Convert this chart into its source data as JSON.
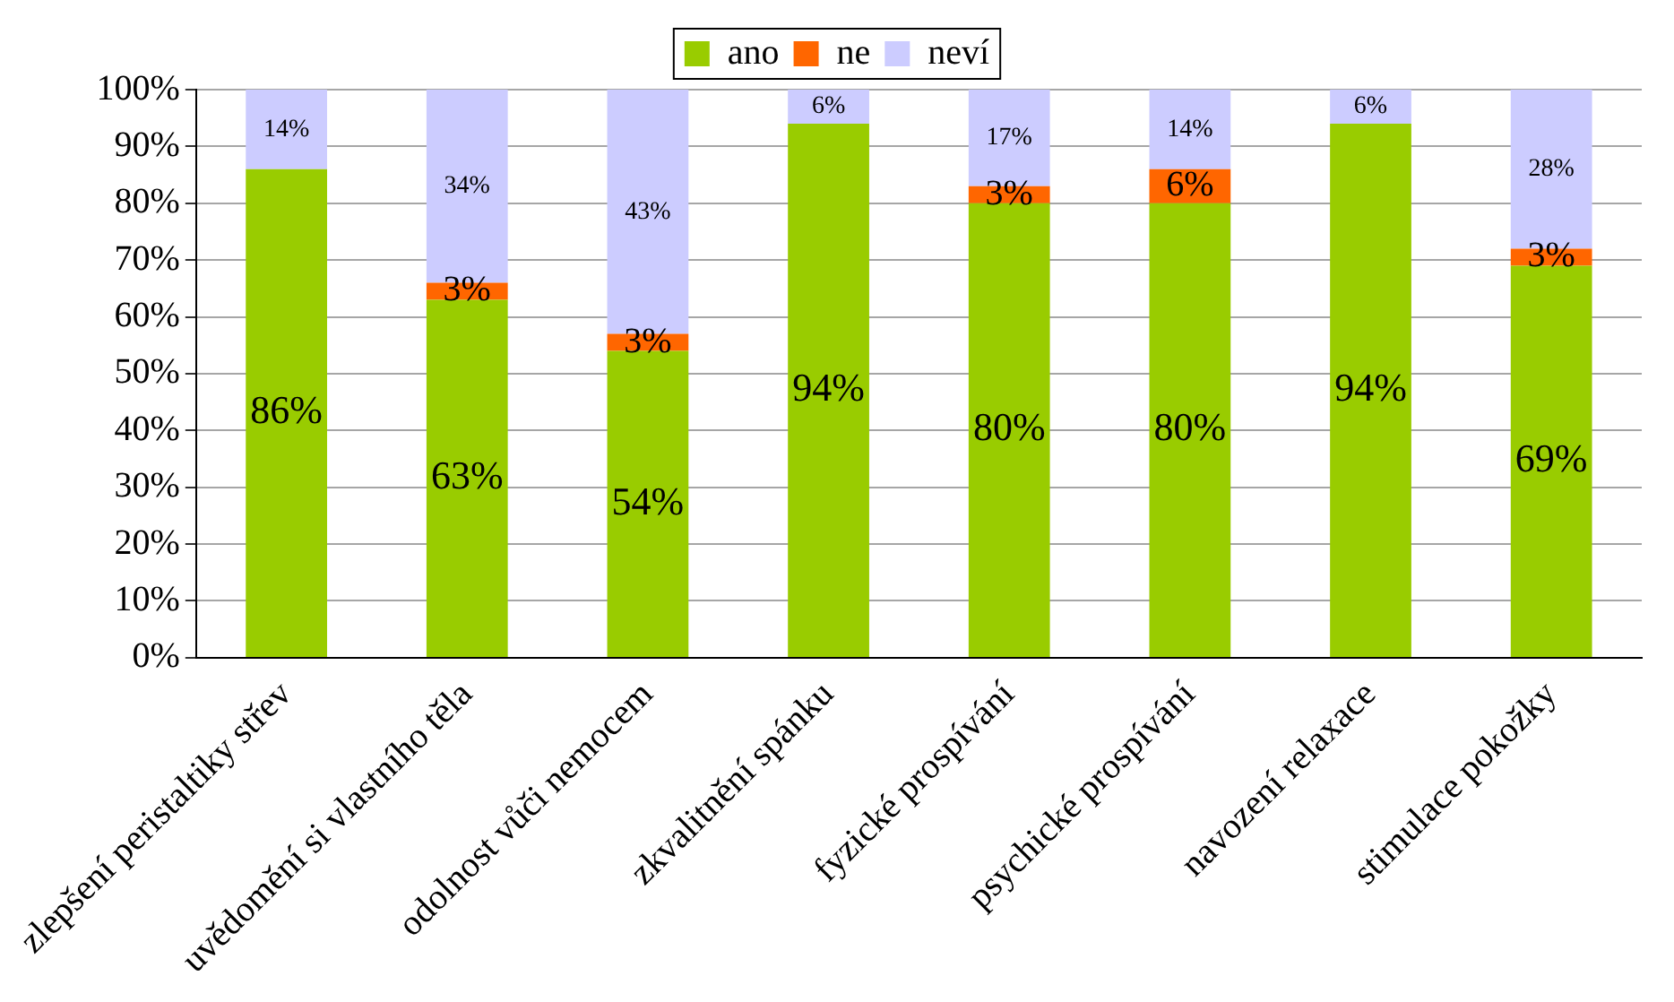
{
  "chart_data": {
    "type": "bar",
    "stacked": true,
    "categories": [
      "zlepšení peristaltiky střev",
      "uvědomění si vlastního těla",
      "odolnost vůči nemocem",
      "zkvalitnění spánku",
      "fyzické prospívání",
      "psychické prospívání",
      "navození relaxace",
      "stimulace pokožky"
    ],
    "series": [
      {
        "name": "ano",
        "color": "#99cc00",
        "values": [
          86,
          63,
          54,
          94,
          80,
          80,
          94,
          69
        ],
        "value_labels": [
          "86%",
          "63%",
          "54%",
          "94%",
          "80%",
          "80%",
          "94%",
          "69%"
        ]
      },
      {
        "name": "ne",
        "color": "#ff6600",
        "values": [
          0,
          3,
          3,
          0,
          3,
          6,
          0,
          3
        ],
        "value_labels": [
          null,
          "3%",
          "3%",
          null,
          "3%",
          "6%",
          null,
          "3%"
        ]
      },
      {
        "name": "neví",
        "color": "#ccccff",
        "values": [
          14,
          34,
          43,
          6,
          17,
          14,
          6,
          28
        ],
        "value_labels": [
          "14%",
          "34%",
          "43%",
          "6%",
          "17%",
          "14%",
          "6%",
          "28%"
        ]
      }
    ],
    "ylim": [
      0,
      100
    ],
    "yticks": [
      {
        "value": 0,
        "label": "0%"
      },
      {
        "value": 10,
        "label": "10%"
      },
      {
        "value": 20,
        "label": "20%"
      },
      {
        "value": 30,
        "label": "30%"
      },
      {
        "value": 40,
        "label": "40%"
      },
      {
        "value": 50,
        "label": "50%"
      },
      {
        "value": 60,
        "label": "60%"
      },
      {
        "value": 70,
        "label": "70%"
      },
      {
        "value": 80,
        "label": "80%"
      },
      {
        "value": 90,
        "label": "90%"
      },
      {
        "value": 100,
        "label": "100%"
      }
    ],
    "grid": "y",
    "legend": "top"
  }
}
